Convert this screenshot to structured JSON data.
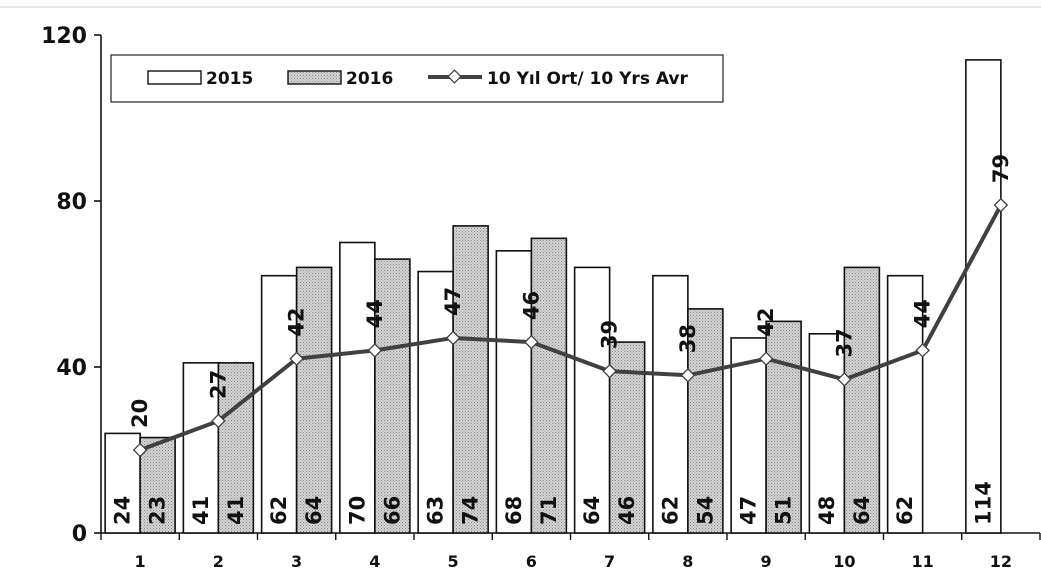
{
  "chart_data": {
    "type": "bar",
    "categories": [
      "1",
      "2",
      "3",
      "4",
      "5",
      "6",
      "7",
      "8",
      "9",
      "10",
      "11",
      "12"
    ],
    "series": [
      {
        "name": "2015",
        "kind": "bar",
        "values": [
          24,
          41,
          62,
          70,
          63,
          68,
          64,
          62,
          47,
          48,
          62,
          114
        ],
        "color": "#ffffff"
      },
      {
        "name": "2016",
        "kind": "bar",
        "values": [
          23,
          41,
          64,
          66,
          74,
          71,
          46,
          54,
          51,
          64,
          null,
          null
        ],
        "color": "#c9c9c9"
      },
      {
        "name": "10 Yıl Ort/ 10 Yrs Avr",
        "kind": "line",
        "values": [
          20,
          27,
          42,
          44,
          47,
          46,
          39,
          38,
          42,
          37,
          44,
          79
        ],
        "color": "#404040"
      }
    ],
    "y_ticks": [
      "0",
      "40",
      "80",
      "120"
    ],
    "ylim": [
      0,
      120
    ],
    "grid": false,
    "legend": "top-left",
    "title": "",
    "xlabel": "",
    "ylabel": ""
  }
}
